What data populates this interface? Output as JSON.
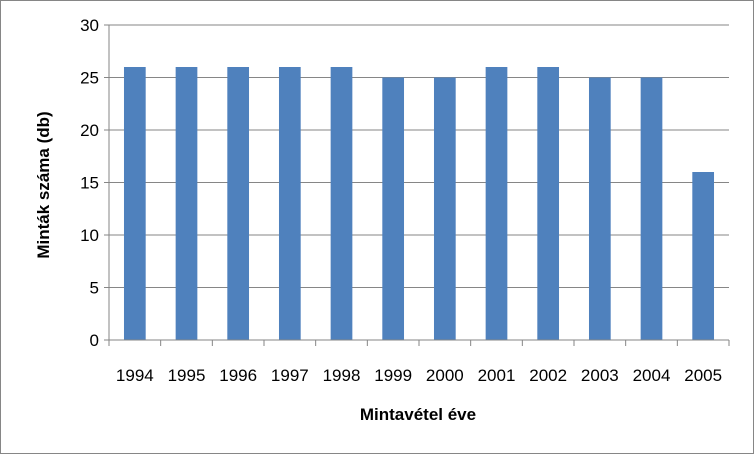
{
  "chart_data": {
    "type": "bar",
    "categories": [
      "1994",
      "1995",
      "1996",
      "1997",
      "1998",
      "1999",
      "2000",
      "2001",
      "2002",
      "2003",
      "2004",
      "2005"
    ],
    "series": [
      {
        "values": [
          26,
          26,
          26,
          26,
          26,
          25,
          25,
          26,
          26,
          25,
          25,
          16
        ]
      }
    ],
    "xlabel": "Mintavétel éve",
    "ylabel": "Minták száma (db)",
    "ylim": [
      0,
      30
    ],
    "yticks": [
      "0",
      "5",
      "10",
      "15",
      "20",
      "25",
      "30"
    ],
    "grid": true,
    "legend": "none",
    "colors": {
      "bar": "#4f81bd",
      "grid": "#868686",
      "axis": "#868686"
    }
  }
}
